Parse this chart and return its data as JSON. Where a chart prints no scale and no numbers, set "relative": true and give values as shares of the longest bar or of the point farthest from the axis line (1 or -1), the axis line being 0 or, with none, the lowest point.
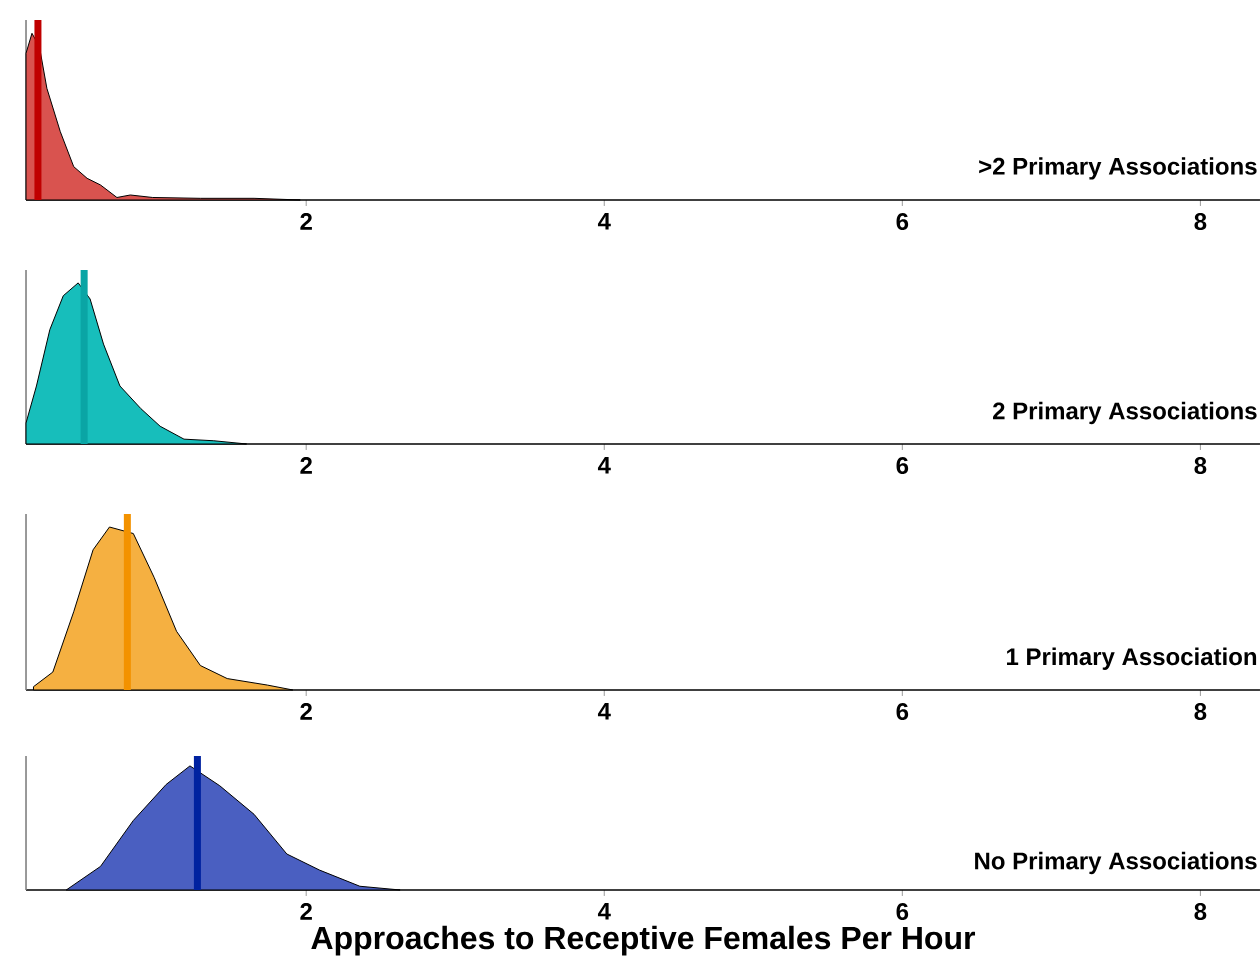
{
  "chart_data": [
    {
      "type": "area",
      "relative": true,
      "xlim": [
        0.12,
        8.4
      ],
      "xticks": [
        2,
        4,
        6,
        8
      ],
      "series": [
        {
          "name": ">2 Primary Associations",
          "color": "#d9534f",
          "x": [
            0.12,
            0.16,
            0.21,
            0.26,
            0.35,
            0.44,
            0.53,
            0.62,
            0.73,
            0.82,
            0.97,
            1.29,
            1.65,
            1.96
          ],
          "values": [
            0.88,
            1.0,
            0.92,
            0.67,
            0.41,
            0.2,
            0.13,
            0.09,
            0.015,
            0.03,
            0.015,
            0.01,
            0.01,
            0
          ]
        }
      ],
      "ref_lines": [
        {
          "axis": "x",
          "value": 0.2,
          "color": "#c00000"
        }
      ]
    },
    {
      "type": "area",
      "relative": true,
      "xlim": [
        0.12,
        8.4
      ],
      "xticks": [
        2,
        4,
        6,
        8
      ],
      "series": [
        {
          "name": "2 Primary Associations",
          "color": "#17bebb",
          "x": [
            0.12,
            0.19,
            0.28,
            0.37,
            0.47,
            0.55,
            0.64,
            0.75,
            0.89,
            1.02,
            1.18,
            1.38,
            1.6
          ],
          "values": [
            0.13,
            0.36,
            0.71,
            0.92,
            1.0,
            0.9,
            0.62,
            0.36,
            0.22,
            0.11,
            0.03,
            0.02,
            0
          ]
        }
      ],
      "ref_lines": [
        {
          "axis": "x",
          "value": 0.51,
          "color": "#0aa5a5"
        }
      ]
    },
    {
      "type": "area",
      "relative": true,
      "xlim": [
        0.12,
        8.4
      ],
      "xticks": [
        2,
        4,
        6,
        8
      ],
      "series": [
        {
          "name": "1 Primary Association",
          "color": "#f5b041",
          "x": [
            0.17,
            0.3,
            0.44,
            0.57,
            0.68,
            0.84,
            0.98,
            1.13,
            1.29,
            1.47,
            1.74,
            1.91
          ],
          "values": [
            0.02,
            0.11,
            0.48,
            0.86,
            1.0,
            0.96,
            0.69,
            0.36,
            0.15,
            0.07,
            0.03,
            0
          ]
        }
      ],
      "ref_lines": [
        {
          "axis": "x",
          "value": 0.8,
          "color": "#f39200"
        }
      ]
    },
    {
      "type": "area",
      "relative": true,
      "xlim": [
        0.12,
        8.4
      ],
      "xticks": [
        2,
        4,
        6,
        8
      ],
      "xlabel": "Approaches to Receptive Females Per Hour",
      "series": [
        {
          "name": "No Primary Associations",
          "color": "#4a5fc1",
          "x": [
            0.39,
            0.62,
            0.84,
            1.06,
            1.22,
            1.42,
            1.65,
            1.87,
            2.09,
            2.36,
            2.63
          ],
          "values": [
            0,
            0.19,
            0.56,
            0.85,
            1.0,
            0.84,
            0.61,
            0.29,
            0.16,
            0.03,
            0
          ]
        }
      ],
      "ref_lines": [
        {
          "axis": "x",
          "value": 1.27,
          "color": "#0022a0"
        }
      ]
    }
  ]
}
